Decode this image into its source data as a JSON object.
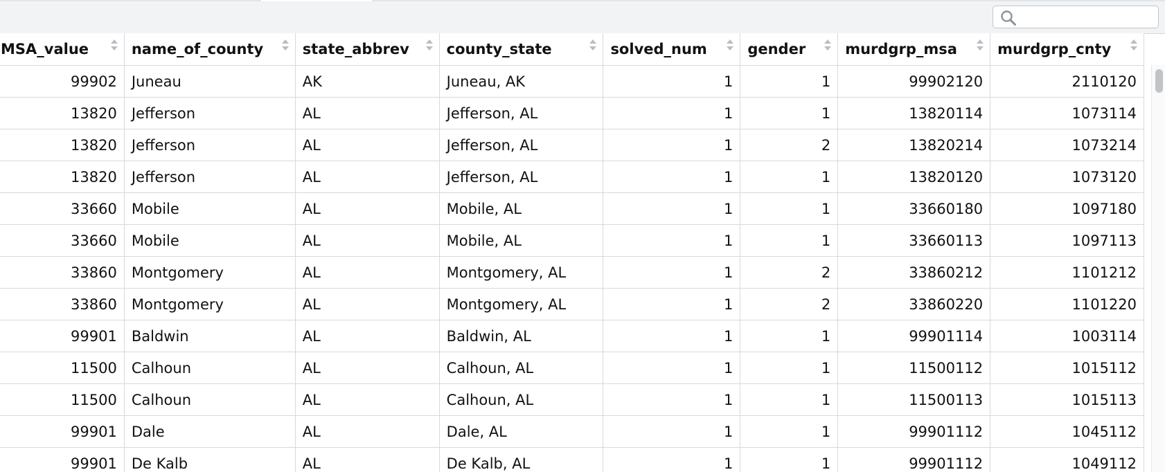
{
  "search": {
    "value": "",
    "icon": "search-icon"
  },
  "table": {
    "columns": [
      {
        "label": "MSA_value",
        "align": "num"
      },
      {
        "label": "name_of_county",
        "align": "txt"
      },
      {
        "label": "state_abbrev",
        "align": "txt"
      },
      {
        "label": "county_state",
        "align": "txt"
      },
      {
        "label": "solved_num",
        "align": "num"
      },
      {
        "label": "gender",
        "align": "num"
      },
      {
        "label": "murdgrp_msa",
        "align": "num"
      },
      {
        "label": "murdgrp_cnty",
        "align": "num"
      }
    ],
    "rows": [
      [
        "99902",
        "Juneau",
        "AK",
        "Juneau, AK",
        "1",
        "1",
        "99902120",
        "2110120"
      ],
      [
        "13820",
        "Jefferson",
        "AL",
        "Jefferson, AL",
        "1",
        "1",
        "13820114",
        "1073114"
      ],
      [
        "13820",
        "Jefferson",
        "AL",
        "Jefferson, AL",
        "1",
        "2",
        "13820214",
        "1073214"
      ],
      [
        "13820",
        "Jefferson",
        "AL",
        "Jefferson, AL",
        "1",
        "1",
        "13820120",
        "1073120"
      ],
      [
        "33660",
        "Mobile",
        "AL",
        "Mobile, AL",
        "1",
        "1",
        "33660180",
        "1097180"
      ],
      [
        "33660",
        "Mobile",
        "AL",
        "Mobile, AL",
        "1",
        "1",
        "33660113",
        "1097113"
      ],
      [
        "33860",
        "Montgomery",
        "AL",
        "Montgomery, AL",
        "1",
        "2",
        "33860212",
        "1101212"
      ],
      [
        "33860",
        "Montgomery",
        "AL",
        "Montgomery, AL",
        "1",
        "2",
        "33860220",
        "1101220"
      ],
      [
        "99901",
        "Baldwin",
        "AL",
        "Baldwin, AL",
        "1",
        "1",
        "99901114",
        "1003114"
      ],
      [
        "11500",
        "Calhoun",
        "AL",
        "Calhoun, AL",
        "1",
        "1",
        "11500112",
        "1015112"
      ],
      [
        "11500",
        "Calhoun",
        "AL",
        "Calhoun, AL",
        "1",
        "1",
        "11500113",
        "1015113"
      ],
      [
        "99901",
        "Dale",
        "AL",
        "Dale, AL",
        "1",
        "1",
        "99901112",
        "1045112"
      ],
      [
        "99901",
        "De Kalb",
        "AL",
        "De Kalb, AL",
        "1",
        "1",
        "99901112",
        "1049112"
      ]
    ]
  }
}
